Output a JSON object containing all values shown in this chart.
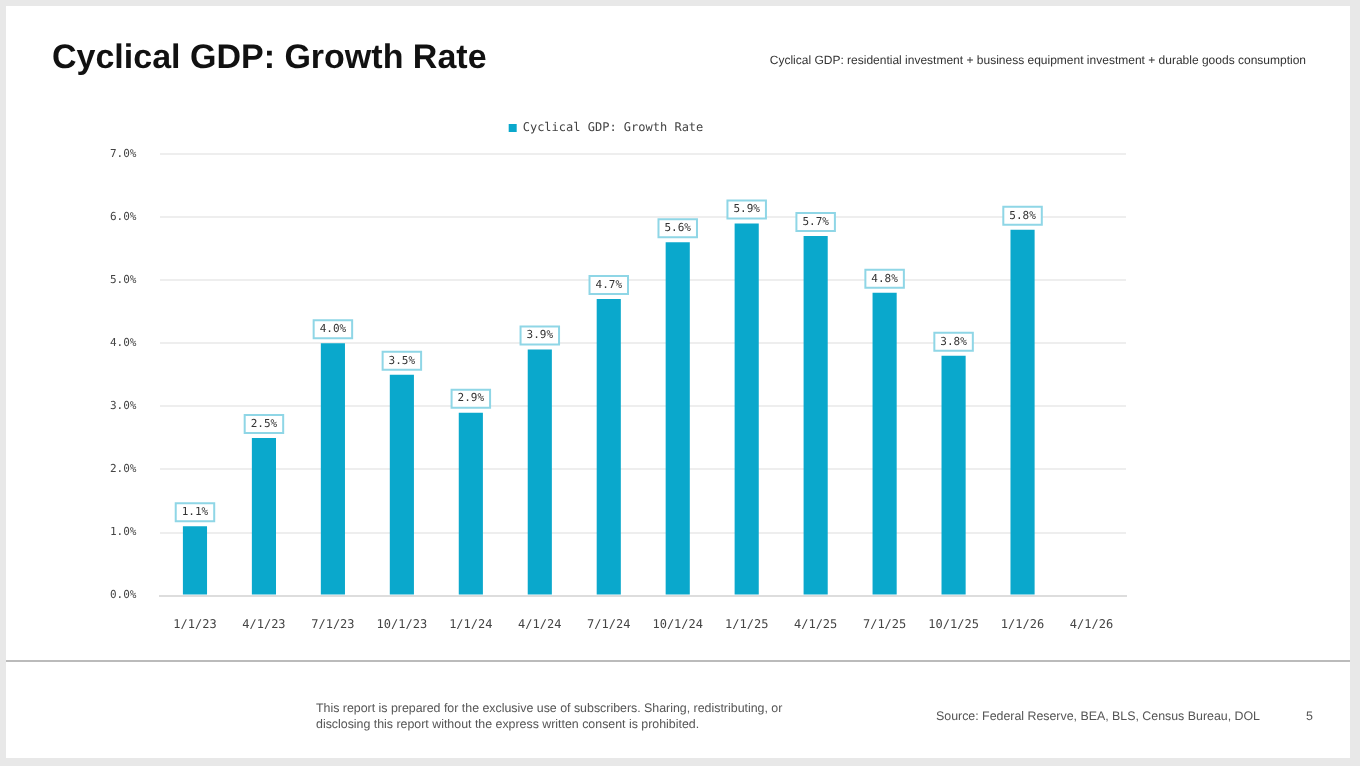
{
  "chart_data": {
    "type": "bar",
    "title": "Cyclical GDP: Growth Rate",
    "subtitle": "Cyclical GDP: residential investment + business equipment investment + durable goods consumption",
    "categories": [
      "1/1/23",
      "4/1/23",
      "7/1/23",
      "10/1/23",
      "1/1/24",
      "4/1/24",
      "7/1/24",
      "10/1/24",
      "1/1/25",
      "4/1/25",
      "7/1/25",
      "10/1/25",
      "1/1/26",
      "4/1/26"
    ],
    "series": [
      {
        "name": "Cyclical GDP: Growth Rate",
        "color": "#0aa8cc",
        "values": [
          1.1,
          2.5,
          4.0,
          3.5,
          2.9,
          3.9,
          4.7,
          5.6,
          5.9,
          5.7,
          4.8,
          3.8,
          5.8,
          null
        ],
        "value_labels": [
          "1.1%",
          "2.5%",
          "4.0%",
          "3.5%",
          "2.9%",
          "3.9%",
          "4.7%",
          "5.6%",
          "5.9%",
          "5.7%",
          "4.8%",
          "3.8%",
          "5.8%",
          null
        ]
      }
    ],
    "ylim": [
      0,
      7
    ],
    "yticks": [
      {
        "value": 0,
        "label": "0.0%"
      },
      {
        "value": 1,
        "label": "1.0%"
      },
      {
        "value": 2,
        "label": "2.0%"
      },
      {
        "value": 3,
        "label": "3.0%"
      },
      {
        "value": 4,
        "label": "4.0%"
      },
      {
        "value": 5,
        "label": "5.0%"
      },
      {
        "value": 6,
        "label": "6.0%"
      },
      {
        "value": 7,
        "label": "7.0%"
      }
    ],
    "grid": "y",
    "legend": "top",
    "annotations": [
      "This report is prepared for the exclusive use of subscribers. Sharing, redistributing, or disclosing this report without the express written consent is prohibited.",
      "Source: Federal Reserve, BEA, BLS, Census Bureau, DOL",
      "5"
    ]
  }
}
